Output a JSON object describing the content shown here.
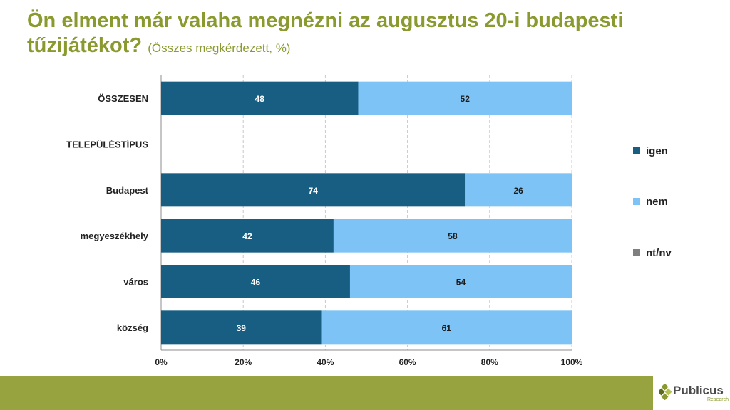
{
  "title": {
    "main": "Ön elment már valaha megnézni az augusztus 20-i budapesti tűzijátékot?",
    "subtitle": "(Összes megkérdezett, %)"
  },
  "chart_data": {
    "type": "bar",
    "orientation": "horizontal",
    "stacked": true,
    "categories": [
      "ÖSSZESEN",
      "TELEPÜLÉSTÍPUS",
      "Budapest",
      "megyeszékhely",
      "város",
      "község"
    ],
    "series": [
      {
        "name": "igen",
        "color": "#175e82",
        "values": [
          48,
          null,
          74,
          42,
          46,
          39
        ]
      },
      {
        "name": "nem",
        "color": "#7dc3f5",
        "values": [
          52,
          null,
          26,
          58,
          54,
          61
        ]
      },
      {
        "name": "nt/nv",
        "color": "#7f7f7f",
        "values": [
          0,
          null,
          0,
          0,
          0,
          0
        ]
      }
    ],
    "xaxis": {
      "ticks": [
        "0%",
        "20%",
        "40%",
        "60%",
        "80%",
        "100%"
      ],
      "range": [
        0,
        100
      ]
    },
    "grid": true,
    "legend_position": "right"
  },
  "footer": {
    "logo_name": "Publicus",
    "logo_sub": "Research",
    "bar_color": "#97a33f"
  }
}
